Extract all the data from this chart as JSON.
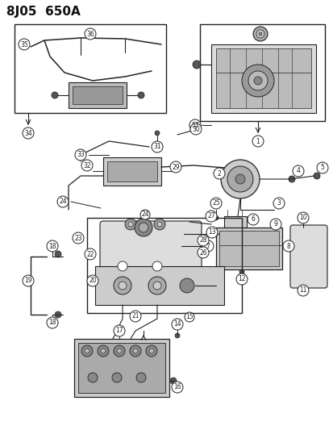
{
  "title": "8J05  650A",
  "bg_color": "#ffffff",
  "line_color": "#222222",
  "label_color": "#111111",
  "fig_width": 4.14,
  "fig_height": 5.33,
  "dpi": 100
}
